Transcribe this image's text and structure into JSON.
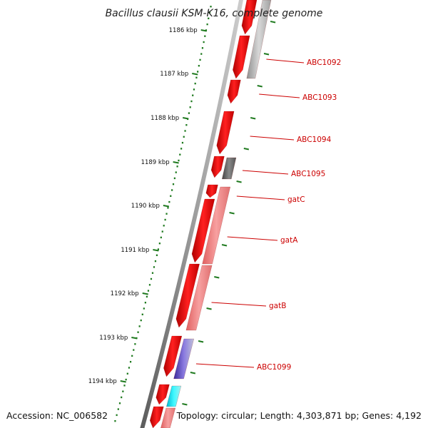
{
  "title": "Bacillus clausii KSM-K16, complete genome",
  "accession": "Accession: NC_006582",
  "topology": "Topology: circular; Length: 4,303,871 bp; Genes: 4,192",
  "colors": {
    "backbone": "#7a7a7a",
    "tick": "#1f7a1f",
    "cds_forward": "#ee1111",
    "label": "#cc0000",
    "rna": "#f08080",
    "other_gray": "#b0b0b0",
    "dark_gray": "#666666",
    "purple": "#6a5acd",
    "cyan": "#00e5ff"
  },
  "ruler": [
    {
      "label": "1186 kbp"
    },
    {
      "label": "1187 kbp"
    },
    {
      "label": "1188 kbp"
    },
    {
      "label": "1189 kbp"
    },
    {
      "label": "1190 kbp"
    },
    {
      "label": "1191 kbp"
    },
    {
      "label": "1192 kbp"
    },
    {
      "label": "1193 kbp"
    },
    {
      "label": "1194 kbp"
    }
  ],
  "gene_labels": [
    {
      "name": "ABC1092"
    },
    {
      "name": "ABC1093"
    },
    {
      "name": "ABC1094"
    },
    {
      "name": "ABC1095"
    },
    {
      "name": "gatC"
    },
    {
      "name": "gatA"
    },
    {
      "name": "gatB"
    },
    {
      "name": "ABC1099"
    }
  ]
}
